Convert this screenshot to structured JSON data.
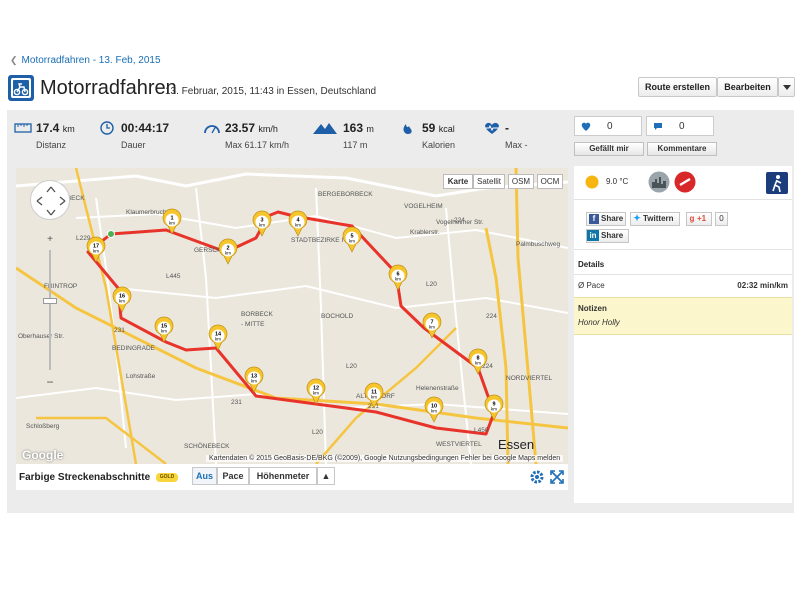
{
  "breadcrumb": {
    "label": "Motorradfahren - 13. Feb, 2015"
  },
  "header": {
    "title": "Motorradfahren",
    "subtitle": "13. Februar, 2015, 11:43 in Essen, Deutschland",
    "btn_route": "Route erstellen",
    "btn_edit": "Bearbeiten",
    "sport_icon": "motorcycle-icon"
  },
  "stats": {
    "distance": {
      "value": "17.4",
      "unit": "km",
      "label": "Distanz",
      "icon": "ruler-icon"
    },
    "duration": {
      "value": "00:44:17",
      "label": "Dauer",
      "icon": "clock-icon"
    },
    "speed": {
      "value": "23.57",
      "unit": "km/h",
      "label": "Max 61.17 km/h",
      "icon": "speedometer-icon"
    },
    "elevation": {
      "value": "163",
      "unit": "m",
      "label": "117 m",
      "icon": "mountain-icon"
    },
    "calories": {
      "value": "59",
      "unit": "kcal",
      "label": "Kalorien",
      "icon": "flame-icon"
    },
    "heartrate": {
      "value": "-",
      "label": "Max -",
      "icon": "heartbeat-icon"
    }
  },
  "social": {
    "likes": "0",
    "comments": "0",
    "like_btn": "Gefällt mir",
    "comment_btn": "Kommentare"
  },
  "map": {
    "types": [
      "Karte",
      "Satellit",
      "OSM",
      "OCM"
    ],
    "active_type": "Karte",
    "attribution": "Kartendaten © 2015 GeoBasis-DE/BKG (©2009), Google    Nutzungsbedingungen    Fehler bei Google Maps melden",
    "google": "Google",
    "labels": {
      "einbeck": "EINBECK",
      "bergeborbeck": "BERGEBORBECK",
      "vogelheim": "VOGELHEIM",
      "stadtbezirke": "STADTBEZIRKE IV",
      "gerschede": "GERSCH",
      "borbeck": "BORBECK",
      "mitte": "- MITTE",
      "frintrop": "FRINTROP",
      "bochold": "BOCHOLD",
      "bedingrade": "BEDINGRADE",
      "altendorf": "ALTENDORF",
      "nordviertel": "NORDVIERTEL",
      "westviertel": "WESTVIERTEL",
      "schonebeck": "SCHÖNEBECK",
      "essen": "Essen",
      "obhauser": "Oberhauser Str.",
      "palmbusch": "Palmbuschweg",
      "krablerstr": "Krablerstr.",
      "vogelheimer": "Vogelheimer Str.",
      "klaumerbruch": "Klaumerbruch",
      "heltenstr": "Helenenstraße",
      "schlossberg": "Schloßberg",
      "l229": "L229",
      "l445": "L445",
      "l20a": "L20",
      "l20b": "L20",
      "l20c": "L20",
      "a224a": "224",
      "a224b": "224",
      "a231a": "231",
      "a231b": "231",
      "a231c": "231",
      "l450": "L450",
      "a224c": "224",
      "ardenb": "Lohstraße"
    },
    "markers": [
      "1",
      "2",
      "3",
      "4",
      "5",
      "6",
      "7",
      "8",
      "9",
      "10",
      "11",
      "12",
      "13",
      "14",
      "15",
      "16",
      "17"
    ],
    "marker_unit": "km",
    "route_color": "#e8332b"
  },
  "toolbar": {
    "label": "Farbige Streckenabschnitte",
    "gold": "GOLD",
    "seg_aus": "Aus",
    "seg_pace": "Pace",
    "seg_height": "Höhenmeter",
    "arrow": "▲"
  },
  "sidebar": {
    "temp": "9.0 °C",
    "share_fb": "Share",
    "share_tw": "Twittern",
    "share_gp": "+1",
    "share_gp_count": "0",
    "share_li": "Share",
    "details": "Details",
    "pace_label": "Ø Pace",
    "pace_value": "02:32 min/km",
    "notes_head": "Notizen",
    "notes_text": "Honor Holly"
  }
}
